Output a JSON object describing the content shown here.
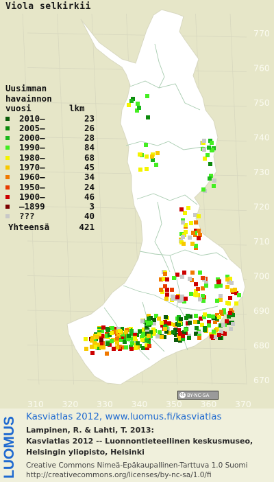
{
  "map": {
    "species": "Viola selkirkii",
    "colors": {
      "background": "#e6e6c8",
      "land": "#ffffff",
      "grid": "#dcdcc8",
      "border": "#a8ccb0",
      "axis_text": "#fbfbf0"
    },
    "y_ticks": [
      "770",
      "760",
      "750",
      "740",
      "730",
      "720",
      "710",
      "700",
      "690",
      "680",
      "670"
    ],
    "x_ticks": [
      "310",
      "320",
      "330",
      "340",
      "350",
      "360",
      "370"
    ]
  },
  "legend": {
    "header_lines": [
      "Uusimman",
      "havainnon",
      "vuosi",
      "lkm"
    ],
    "rows": [
      {
        "label": "2010–",
        "count": "23",
        "color": "#0a5a0a"
      },
      {
        "label": "2005–",
        "count": "26",
        "color": "#0c8a0c"
      },
      {
        "label": "2000–",
        "count": "28",
        "color": "#1ab81a"
      },
      {
        "label": "1990–",
        "count": "84",
        "color": "#44ee22"
      },
      {
        "label": "1980–",
        "count": "68",
        "color": "#f4f400"
      },
      {
        "label": "1970–",
        "count": "45",
        "color": "#f8c800"
      },
      {
        "label": "1960–",
        "count": "34",
        "color": "#f07800"
      },
      {
        "label": "1950–",
        "count": "24",
        "color": "#e83a00"
      },
      {
        "label": "1900–",
        "count": "46",
        "color": "#cc0000"
      },
      {
        "label": "–1899",
        "count": "3",
        "color": "#7a0000"
      },
      {
        "label": "???",
        "count": "40",
        "color": "#c8c8c8"
      }
    ],
    "total_label": "Yhteensä",
    "total_count": "421"
  },
  "badge": {
    "text": "BY-NC-SA",
    "cc": "cc"
  },
  "credits": {
    "logo_text": "LUOMUS",
    "atlas_link": "Kasviatlas 2012, www.luomus.fi/kasviatlas",
    "cite_line1": "Lampinen, R. & Lahti, T. 2013:",
    "cite_line2": "Kasviatlas 2012 -- Luonnontieteellinen keskusmuseo,",
    "cite_line3": "Helsingin yliopisto, Helsinki",
    "license_line1": "Creative Commons Nimeä-Epäkaupallinen-Tarttuva 1.0 Suomi",
    "license_line2": "http://creativecommons.org/licenses/by-nc-sa/1.0/fi"
  }
}
